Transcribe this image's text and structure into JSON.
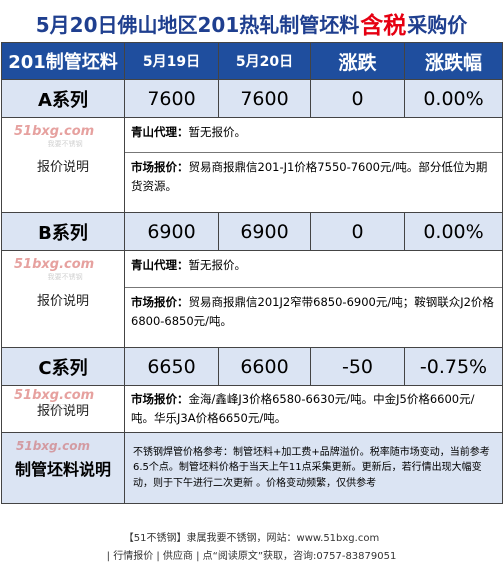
{
  "title": {
    "prefix": "5月20日佛山地区201热轧制管坯料",
    "highlight": "含税",
    "suffix": "采购价"
  },
  "watermark": {
    "main": "51bxg.com",
    "sub": "我要不锈钢"
  },
  "chart_data": {
    "type": "table",
    "columns": [
      "201制管坯料",
      "5月19日",
      "5月20日",
      "涨跌",
      "涨跌幅"
    ],
    "rows": [
      {
        "series": "A系列",
        "may19": "7600",
        "may20": "7600",
        "change": "0",
        "pct": "0.00%",
        "label": "报价说明",
        "notes": [
          {
            "k": "青山代理：",
            "v": "暂无报价。"
          },
          {
            "k": "市场报价：",
            "v": "贸易商报鼎信201-J1价格7550-7600元/吨。部分低位为期货资源。"
          }
        ]
      },
      {
        "series": "B系列",
        "may19": "6900",
        "may20": "6900",
        "change": "0",
        "pct": "0.00%",
        "label": "报价说明",
        "notes": [
          {
            "k": "青山代理：",
            "v": "暂无报价。"
          },
          {
            "k": "市场报价：",
            "v": "贸易商报鼎信201J2窄带6850-6900元/吨；鞍钢联众J2价格6800-6850元/吨。"
          }
        ]
      },
      {
        "series": "C系列",
        "may19": "6650",
        "may20": "6600",
        "change": "-50",
        "pct": "-0.75%",
        "label": "报价说明",
        "notes": [
          {
            "k": "市场报价：",
            "v": "金海/鑫峰J3价格6580-6630元/吨。中金J5价格6600元/吨。华乐J3A价格6650元/吨。"
          }
        ]
      }
    ]
  },
  "explain": {
    "label": "制管坯料说明",
    "text": "不锈钢焊管价格参考：制管坯料+加工费+品牌溢价。税率随市场变动，当前参考6.5个点。制管坯料价格于当天上午11点采集更新。更新后，若行情出现大幅变动，则于下午进行二次更新 。价格变动频繁，仅供参考"
  },
  "footer": {
    "line1": "【51不锈钢】隶属我要不锈钢，网站：www.51bxg.com",
    "line2": "| 行情报价 | 供应商 | 点“阅读原文”获取，咨询:0757-83879051"
  }
}
